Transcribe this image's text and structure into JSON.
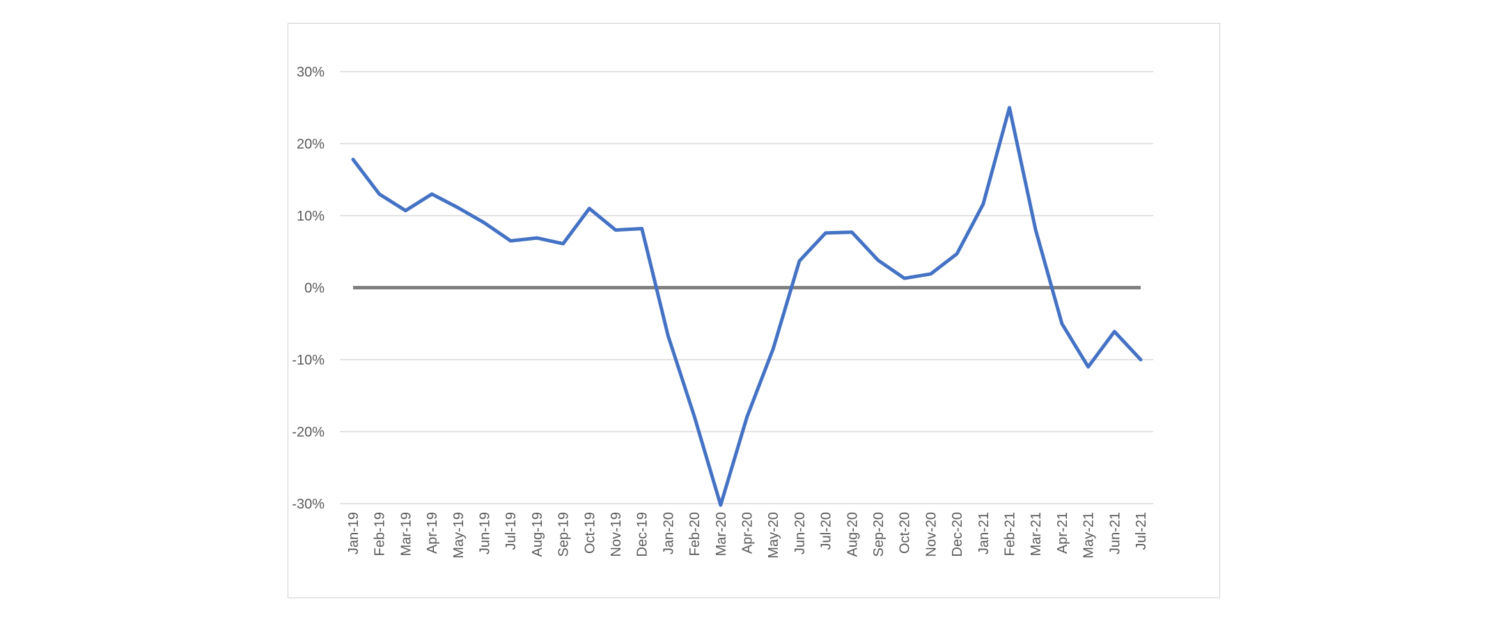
{
  "chart_data": {
    "type": "line",
    "title": "",
    "xlabel": "",
    "ylabel": "",
    "categories": [
      "Jan-19",
      "Feb-19",
      "Mar-19",
      "Apr-19",
      "May-19",
      "Jun-19",
      "Jul-19",
      "Aug-19",
      "Sep-19",
      "Oct-19",
      "Nov-19",
      "Dec-19",
      "Jan-20",
      "Feb-20",
      "Mar-20",
      "Apr-20",
      "May-20",
      "Jun-20",
      "Jul-20",
      "Aug-20",
      "Sep-20",
      "Oct-20",
      "Nov-20",
      "Dec-20",
      "Jan-21",
      "Feb-21",
      "Mar-21",
      "Apr-21",
      "May-21",
      "Jun-21",
      "Jul-21"
    ],
    "series": [
      {
        "values": [
          17.8,
          13.0,
          10.7,
          13.0,
          11.1,
          9.0,
          6.5,
          6.9,
          6.1,
          11.0,
          8.0,
          8.2,
          -6.7,
          -17.9,
          -30.2,
          -18.0,
          -8.5,
          3.7,
          7.6,
          7.7,
          3.8,
          1.3,
          1.9,
          4.7,
          11.6,
          25.0,
          8.0,
          -5.0,
          -11.0,
          -6.1,
          -10.0
        ],
        "color": "#4472c4"
      }
    ],
    "zero_line_color": "#808080",
    "gridline_color": "#d9d9d9",
    "ylim": [
      -30,
      30
    ],
    "y_ticks": [
      30,
      20,
      10,
      0,
      -10,
      -20,
      -30
    ],
    "y_tick_labels": [
      "30%",
      "20%",
      "10%",
      "0%",
      "-10%",
      "-20%",
      "-30%"
    ],
    "grid": true,
    "legend": "none"
  }
}
